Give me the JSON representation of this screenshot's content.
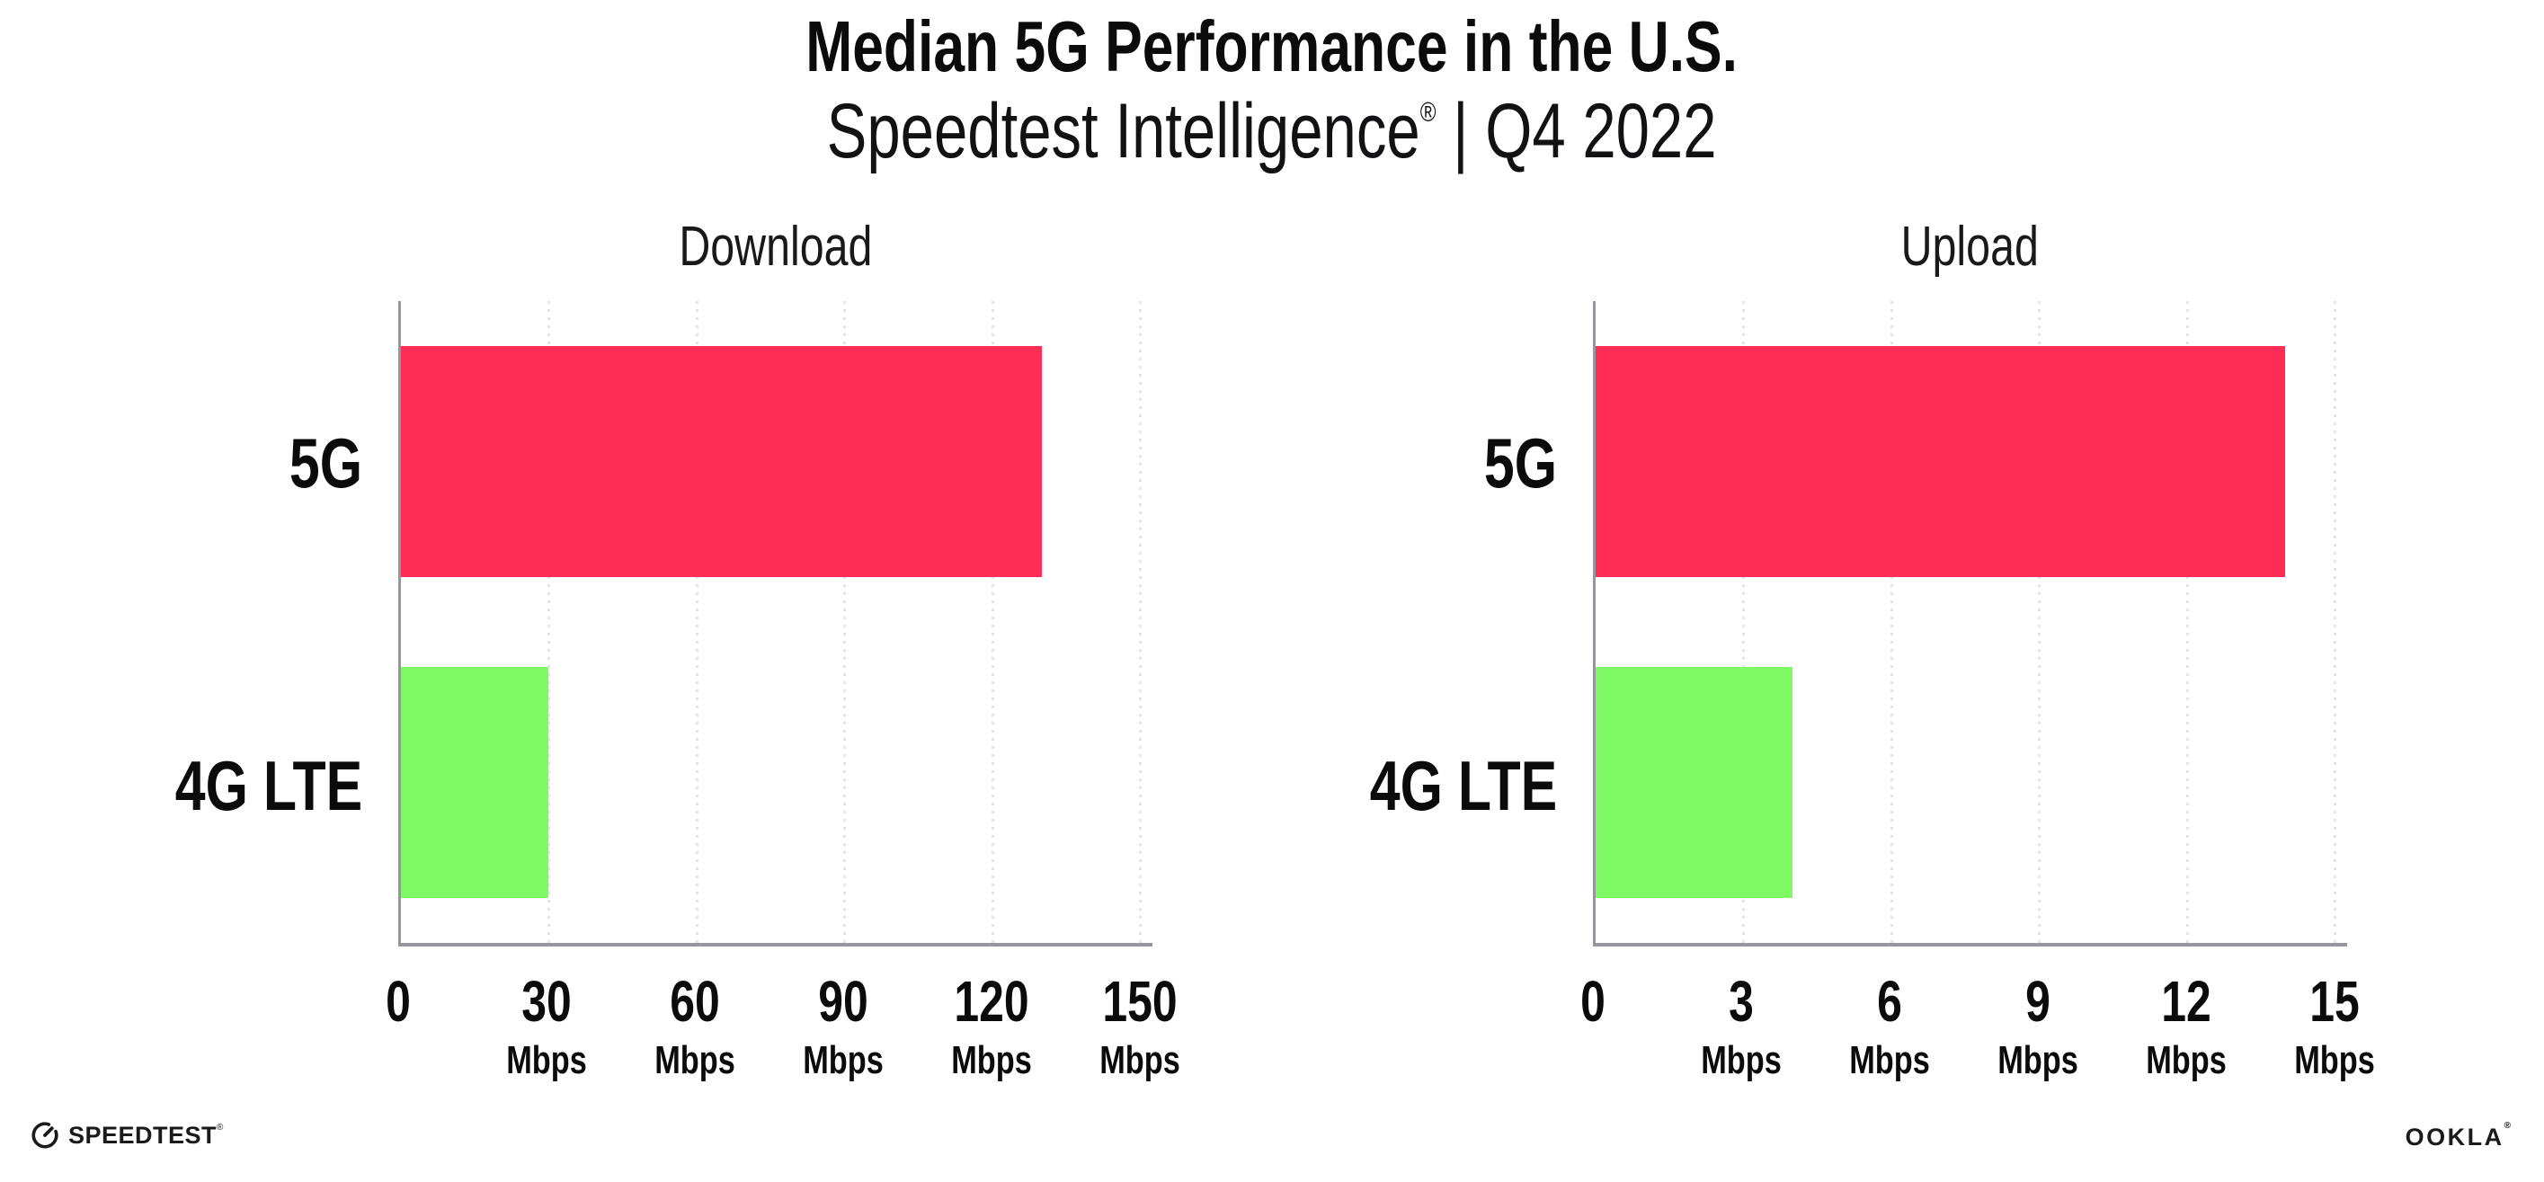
{
  "header": {
    "title": "Median 5G Performance in the U.S.",
    "subtitle": {
      "text": "Speedtest Intelligence® | Q4 2022",
      "brand": "Speedtest Intelligence",
      "registered": "®",
      "rest": " | Q4 2022"
    }
  },
  "chart_data": [
    {
      "type": "bar",
      "orientation": "horizontal",
      "title": "Download",
      "categories": [
        "5G",
        "4G LTE"
      ],
      "values": [
        130,
        30
      ],
      "unit": "Mbps",
      "xlim": [
        0,
        152.5
      ],
      "grid": "dotted-vertical",
      "ticks": [
        {
          "value": 0,
          "label": "0",
          "unit": ""
        },
        {
          "value": 30,
          "label": "30",
          "unit": "Mbps"
        },
        {
          "value": 60,
          "label": "60",
          "unit": "Mbps"
        },
        {
          "value": 90,
          "label": "90",
          "unit": "Mbps"
        },
        {
          "value": 120,
          "label": "120",
          "unit": "Mbps"
        },
        {
          "value": 150,
          "label": "150",
          "unit": "Mbps"
        }
      ],
      "bar_colors": [
        "#FF2D55",
        "#7FFA64"
      ]
    },
    {
      "type": "bar",
      "orientation": "horizontal",
      "title": "Upload",
      "categories": [
        "5G",
        "4G LTE"
      ],
      "values": [
        14,
        4
      ],
      "unit": "Mbps",
      "xlim": [
        0,
        15.25
      ],
      "grid": "dotted-vertical",
      "ticks": [
        {
          "value": 0,
          "label": "0",
          "unit": ""
        },
        {
          "value": 3,
          "label": "3",
          "unit": "Mbps"
        },
        {
          "value": 6,
          "label": "6",
          "unit": "Mbps"
        },
        {
          "value": 9,
          "label": "9",
          "unit": "Mbps"
        },
        {
          "value": 12,
          "label": "12",
          "unit": "Mbps"
        },
        {
          "value": 15,
          "label": "15",
          "unit": "Mbps"
        }
      ],
      "bar_colors": [
        "#FF2D55",
        "#7FFA64"
      ]
    }
  ],
  "footer": {
    "speedtest_label": "SPEEDTEST",
    "speedtest_registered": "®",
    "ookla_label": "OOKLA",
    "ookla_registered": "®"
  },
  "colors": {
    "bar-5g": "#FF2D55",
    "bar-4g": "#7FFA64",
    "axis": "#96969E",
    "grid": "#E3E3ED",
    "text": "#0B0B0C"
  }
}
